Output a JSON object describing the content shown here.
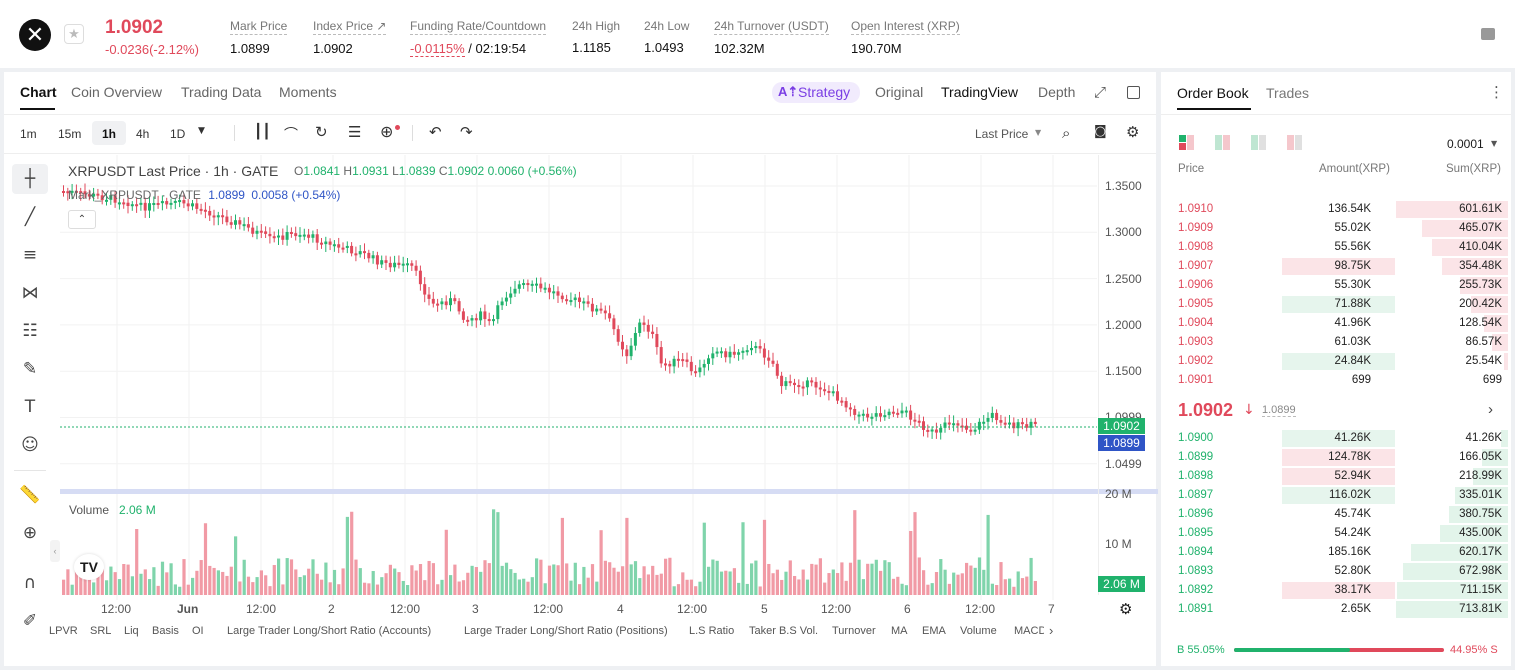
{
  "header": {
    "last_price": "1.0902",
    "change": "-0.0236(-2.12%)",
    "stats": [
      {
        "label": "Mark Price",
        "value": "1.0899"
      },
      {
        "label": "Index Price ↗",
        "value": "1.0902"
      },
      {
        "label": "Funding Rate/Countdown",
        "value_red": "-0.0115%",
        "value": " / 02:19:54"
      },
      {
        "label": "24h High",
        "value": "1.1185"
      },
      {
        "label": "24h Low",
        "value": "1.0493"
      },
      {
        "label": "24h Turnover (USDT)",
        "value": "102.32M"
      },
      {
        "label": "Open Interest (XRP)",
        "value": "190.70M"
      }
    ]
  },
  "chart_tabs": [
    "Chart",
    "Coin Overview",
    "Trading Data",
    "Moments"
  ],
  "view_tabs": {
    "strategy": "Strategy",
    "original": "Original",
    "tradingview": "TradingView",
    "depth": "Depth"
  },
  "intervals": [
    "1m",
    "15m",
    "1h",
    "4h",
    "1D"
  ],
  "price_type": "Last Price",
  "legend": {
    "title": "XRPUSDT Last Price · 1h · GATE",
    "o_label": "O",
    "o": "1.0841",
    "h_label": "H",
    "h": "1.0931",
    "l_label": "L",
    "l": "1.0839",
    "c_label": "C",
    "c": "1.0902",
    "chg": "0.0060 (+0.56%)",
    "mark_title": "Mark_XRPUSDT · GATE",
    "mark_price": "1.0899",
    "mark_chg": "0.0058 (+0.54%)"
  },
  "volume_label": "Volume",
  "volume_value": "2.06 M",
  "price_axis": [
    "1.3500",
    "1.3000",
    "1.2500",
    "1.2000",
    "1.1500",
    "1.0999",
    "1.0499"
  ],
  "volume_axis": [
    "20 M",
    "10 M"
  ],
  "last_price_tag": "1.0902",
  "mark_price_tag": "1.0899",
  "volume_tag": "2.06 M",
  "time_axis": [
    "12:00",
    "Jun",
    "12:00",
    "2",
    "12:00",
    "3",
    "12:00",
    "4",
    "12:00",
    "5",
    "12:00",
    "6",
    "12:00",
    "7"
  ],
  "indicators": [
    "LPVR",
    "SRL",
    "Liq",
    "Basis",
    "OI",
    "Large Trader Long/Short Ratio (Accounts)",
    "Large Trader Long/Short Ratio (Positions)",
    "L.S Ratio",
    "Taker B.S Vol.",
    "Turnover",
    "MA",
    "EMA",
    "Volume",
    "MACD"
  ],
  "orderbook": {
    "tabs": [
      "Order Book",
      "Trades"
    ],
    "precision": "0.0001",
    "headers": [
      "Price",
      "Amount(XRP)",
      "Sum(XRP)"
    ],
    "asks": [
      {
        "price": "1.0910",
        "amount": "136.54K",
        "sum": "601.61K",
        "amt_frac": 0,
        "sum_frac": 1.0
      },
      {
        "price": "1.0909",
        "amount": "55.02K",
        "sum": "465.07K",
        "amt_frac": 0,
        "sum_frac": 0.77
      },
      {
        "price": "1.0908",
        "amount": "55.56K",
        "sum": "410.04K",
        "amt_frac": 0,
        "sum_frac": 0.68
      },
      {
        "price": "1.0907",
        "amount": "98.75K",
        "sum": "354.48K",
        "amt_frac": 0.72,
        "sum_frac": 0.59
      },
      {
        "price": "1.0906",
        "amount": "55.30K",
        "sum": "255.73K",
        "amt_frac": 0,
        "sum_frac": 0.43
      },
      {
        "price": "1.0905",
        "amount": "71.88K",
        "sum": "200.42K",
        "amt_frac": 0.72,
        "sum_frac": 0.33,
        "amt_green": true
      },
      {
        "price": "1.0904",
        "amount": "41.96K",
        "sum": "128.54K",
        "amt_frac": 0,
        "sum_frac": 0.21
      },
      {
        "price": "1.0903",
        "amount": "61.03K",
        "sum": "86.57K",
        "amt_frac": 0,
        "sum_frac": 0.14
      },
      {
        "price": "1.0902",
        "amount": "24.84K",
        "sum": "25.54K",
        "amt_frac": 0.72,
        "sum_frac": 0.04,
        "amt_green": true
      },
      {
        "price": "1.0901",
        "amount": "699",
        "sum": "699",
        "amt_frac": 0,
        "sum_frac": 0.0
      }
    ],
    "mid_price": "1.0902",
    "mid_mark": "1.0899",
    "bids": [
      {
        "price": "1.0900",
        "amount": "41.26K",
        "sum": "41.26K",
        "amt_frac": 0.72,
        "sum_frac": 0.06
      },
      {
        "price": "1.0899",
        "amount": "124.78K",
        "sum": "166.05K",
        "amt_frac": 0.72,
        "sum_frac": 0.23,
        "amt_red": true
      },
      {
        "price": "1.0898",
        "amount": "52.94K",
        "sum": "218.99K",
        "amt_frac": 0.72,
        "sum_frac": 0.31,
        "amt_red": true
      },
      {
        "price": "1.0897",
        "amount": "116.02K",
        "sum": "335.01K",
        "amt_frac": 0.72,
        "sum_frac": 0.47
      },
      {
        "price": "1.0896",
        "amount": "45.74K",
        "sum": "380.75K",
        "amt_frac": 0,
        "sum_frac": 0.53
      },
      {
        "price": "1.0895",
        "amount": "54.24K",
        "sum": "435.00K",
        "amt_frac": 0,
        "sum_frac": 0.61
      },
      {
        "price": "1.0894",
        "amount": "185.16K",
        "sum": "620.17K",
        "amt_frac": 0,
        "sum_frac": 0.87
      },
      {
        "price": "1.0893",
        "amount": "52.80K",
        "sum": "672.98K",
        "amt_frac": 0,
        "sum_frac": 0.94
      },
      {
        "price": "1.0892",
        "amount": "38.17K",
        "sum": "711.15K",
        "amt_frac": 0.72,
        "sum_frac": 0.99,
        "amt_red": true
      },
      {
        "price": "1.0891",
        "amount": "2.65K",
        "sum": "713.81K",
        "amt_frac": 0,
        "sum_frac": 1.0
      }
    ],
    "buy_ratio": "B 55.05%",
    "sell_ratio": "44.95% S",
    "buy_frac": 0.5505
  },
  "colors": {
    "up": "#20b26c",
    "down": "#e0495b",
    "accent": "#7b3fe4"
  }
}
